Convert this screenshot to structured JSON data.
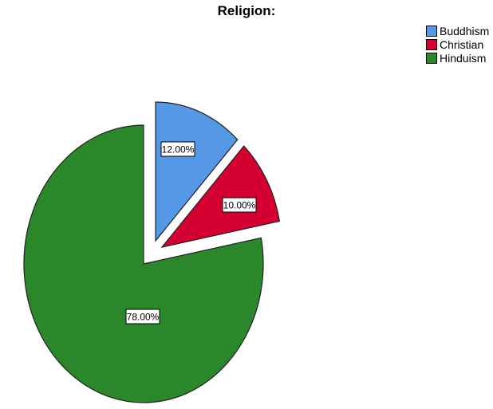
{
  "chart_data": {
    "type": "pie",
    "title": "Religion:",
    "categories": [
      "Buddhism",
      "Christian",
      "Hinduism"
    ],
    "values": [
      12.0,
      10.0,
      78.0
    ],
    "data_labels": [
      "12.00%",
      "10.00%",
      "78.00%"
    ],
    "colors": [
      "#5599e6",
      "#d50032",
      "#2a882a"
    ],
    "exploded": [
      true,
      true,
      false
    ],
    "start": "12 o'clock, clockwise",
    "legend_position": "top-right"
  }
}
